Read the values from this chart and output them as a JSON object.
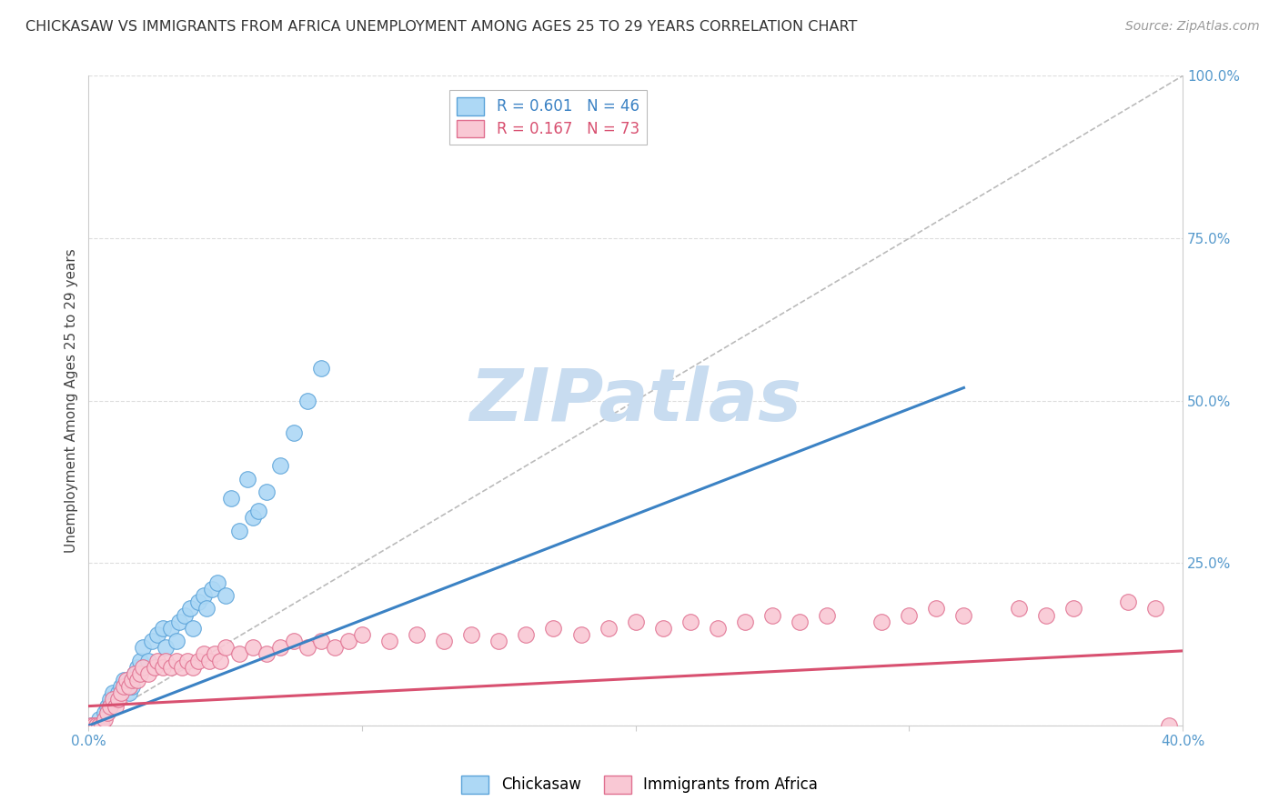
{
  "title": "CHICKASAW VS IMMIGRANTS FROM AFRICA UNEMPLOYMENT AMONG AGES 25 TO 29 YEARS CORRELATION CHART",
  "source": "Source: ZipAtlas.com",
  "ylabel": "Unemployment Among Ages 25 to 29 years",
  "xlim": [
    0.0,
    0.4
  ],
  "ylim": [
    0.0,
    1.0
  ],
  "xticks": [
    0.0,
    0.1,
    0.2,
    0.3,
    0.4
  ],
  "yticks": [
    0.0,
    0.25,
    0.5,
    0.75,
    1.0
  ],
  "xticklabels_show": [
    "0.0%",
    "",
    "",
    "",
    "40.0%"
  ],
  "yticklabels_show": [
    "",
    "25.0%",
    "50.0%",
    "75.0%",
    "100.0%"
  ],
  "series": [
    {
      "name": "Chickasaw",
      "R": 0.601,
      "N": 46,
      "color": "#ADD8F5",
      "edge_color": "#5BA3D9",
      "trend_color": "#3B82C4",
      "x": [
        0.001,
        0.002,
        0.003,
        0.004,
        0.005,
        0.006,
        0.007,
        0.008,
        0.009,
        0.01,
        0.011,
        0.012,
        0.013,
        0.015,
        0.016,
        0.017,
        0.018,
        0.019,
        0.02,
        0.022,
        0.023,
        0.025,
        0.027,
        0.028,
        0.03,
        0.032,
        0.033,
        0.035,
        0.037,
        0.038,
        0.04,
        0.042,
        0.043,
        0.045,
        0.047,
        0.05,
        0.052,
        0.055,
        0.058,
        0.06,
        0.062,
        0.065,
        0.07,
        0.075,
        0.08,
        0.085
      ],
      "y": [
        0.0,
        0.0,
        0.0,
        0.01,
        0.0,
        0.02,
        0.03,
        0.04,
        0.05,
        0.04,
        0.05,
        0.06,
        0.07,
        0.05,
        0.06,
        0.08,
        0.09,
        0.1,
        0.12,
        0.1,
        0.13,
        0.14,
        0.15,
        0.12,
        0.15,
        0.13,
        0.16,
        0.17,
        0.18,
        0.15,
        0.19,
        0.2,
        0.18,
        0.21,
        0.22,
        0.2,
        0.35,
        0.3,
        0.38,
        0.32,
        0.33,
        0.36,
        0.4,
        0.45,
        0.5,
        0.55
      ],
      "trend_x": [
        0.0,
        0.32
      ],
      "trend_y": [
        0.0,
        0.52
      ]
    },
    {
      "name": "Immigrants from Africa",
      "R": 0.167,
      "N": 73,
      "color": "#F9C8D4",
      "edge_color": "#E07090",
      "trend_color": "#D85070",
      "x": [
        0.001,
        0.002,
        0.003,
        0.004,
        0.005,
        0.006,
        0.007,
        0.008,
        0.009,
        0.01,
        0.011,
        0.012,
        0.013,
        0.014,
        0.015,
        0.016,
        0.017,
        0.018,
        0.019,
        0.02,
        0.022,
        0.024,
        0.025,
        0.027,
        0.028,
        0.03,
        0.032,
        0.034,
        0.036,
        0.038,
        0.04,
        0.042,
        0.044,
        0.046,
        0.048,
        0.05,
        0.055,
        0.06,
        0.065,
        0.07,
        0.075,
        0.08,
        0.085,
        0.09,
        0.095,
        0.1,
        0.11,
        0.12,
        0.13,
        0.14,
        0.15,
        0.16,
        0.17,
        0.18,
        0.19,
        0.2,
        0.21,
        0.22,
        0.23,
        0.24,
        0.25,
        0.26,
        0.27,
        0.29,
        0.3,
        0.31,
        0.32,
        0.34,
        0.35,
        0.36,
        0.38,
        0.39,
        0.395
      ],
      "y": [
        0.0,
        0.0,
        0.0,
        0.0,
        0.0,
        0.01,
        0.02,
        0.03,
        0.04,
        0.03,
        0.04,
        0.05,
        0.06,
        0.07,
        0.06,
        0.07,
        0.08,
        0.07,
        0.08,
        0.09,
        0.08,
        0.09,
        0.1,
        0.09,
        0.1,
        0.09,
        0.1,
        0.09,
        0.1,
        0.09,
        0.1,
        0.11,
        0.1,
        0.11,
        0.1,
        0.12,
        0.11,
        0.12,
        0.11,
        0.12,
        0.13,
        0.12,
        0.13,
        0.12,
        0.13,
        0.14,
        0.13,
        0.14,
        0.13,
        0.14,
        0.13,
        0.14,
        0.15,
        0.14,
        0.15,
        0.16,
        0.15,
        0.16,
        0.15,
        0.16,
        0.17,
        0.16,
        0.17,
        0.16,
        0.17,
        0.18,
        0.17,
        0.18,
        0.17,
        0.18,
        0.19,
        0.18,
        0.0
      ],
      "trend_x": [
        0.0,
        0.4
      ],
      "trend_y": [
        0.03,
        0.115
      ]
    }
  ],
  "ref_line": {
    "x": [
      0.0,
      0.4
    ],
    "y": [
      0.0,
      1.0
    ],
    "color": "#BBBBBB",
    "linestyle": "--"
  },
  "watermark": "ZIPatlas",
  "watermark_color": "#C8DCF0",
  "background_color": "#FFFFFF",
  "grid_color": "#DDDDDD",
  "title_fontsize": 11.5,
  "axis_label_fontsize": 11,
  "tick_fontsize": 11,
  "source_fontsize": 10,
  "legend_fontsize": 12
}
